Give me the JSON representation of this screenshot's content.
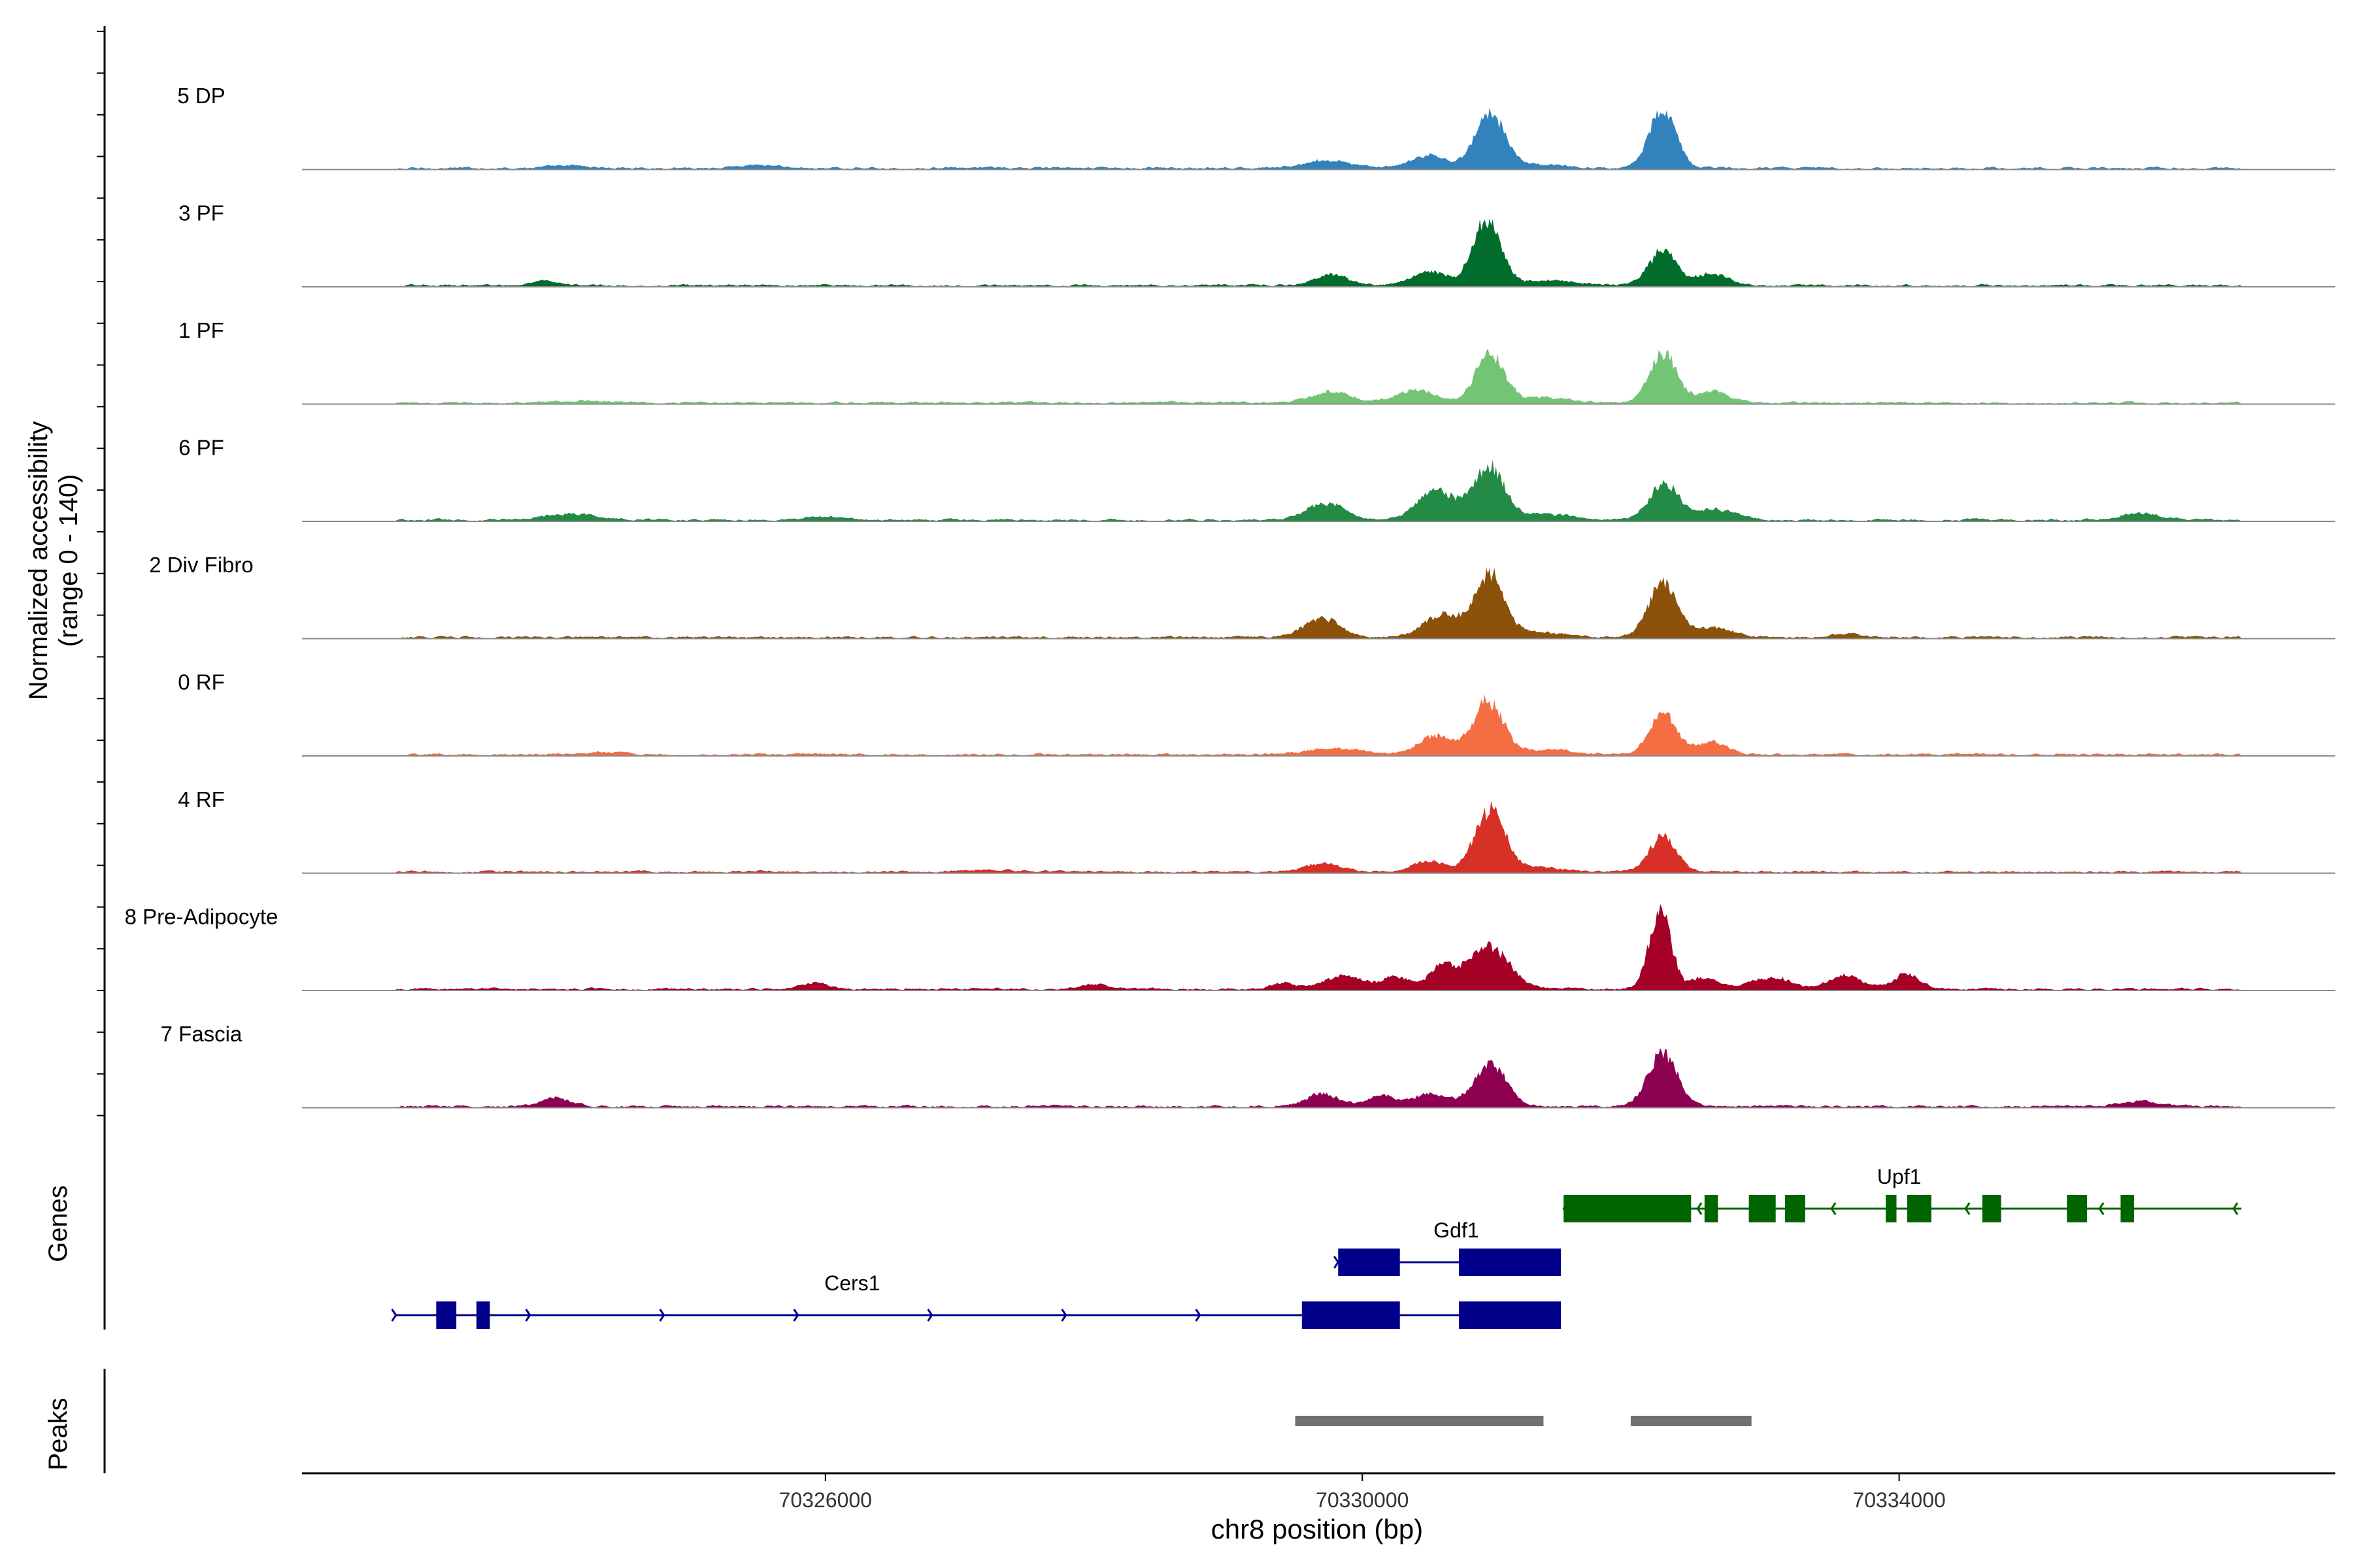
{
  "chart_data": {
    "type": "area",
    "title": "",
    "ylabel": [
      "Normalized accessibility",
      "(range 0 - 140)"
    ],
    "ylim": [
      0,
      140
    ],
    "xlabel": "chr8 position (bp)",
    "xlim": [
      70322100,
      70337250
    ],
    "xticks": [
      {
        "value": 70326000,
        "label": "70326000"
      },
      {
        "value": 70330000,
        "label": "70330000"
      },
      {
        "value": 70334000,
        "label": "70334000"
      }
    ],
    "coverage_start": 70322800,
    "coverage_end": 70336550,
    "background_noise": 4,
    "tracks": [
      {
        "name": "5 DP",
        "color": "#3182BD",
        "peaks": [
          [
            70330500,
            20,
            130
          ],
          [
            70330950,
            88,
            110
          ],
          [
            70332240,
            95,
            100
          ],
          [
            70329750,
            12,
            180
          ],
          [
            70331300,
            6,
            200
          ],
          [
            70324100,
            4,
            150
          ],
          [
            70325500,
            5,
            150
          ]
        ]
      },
      {
        "name": "3 PF",
        "color": "#006D2C",
        "peaks": [
          [
            70330500,
            22,
            130
          ],
          [
            70330930,
            106,
            105
          ],
          [
            70332240,
            58,
            100
          ],
          [
            70329770,
            18,
            120
          ],
          [
            70332600,
            18,
            120
          ],
          [
            70331400,
            8,
            200
          ],
          [
            70323900,
            8,
            100
          ]
        ]
      },
      {
        "name": "1 PF",
        "color": "#74C476",
        "peaks": [
          [
            70330400,
            22,
            140
          ],
          [
            70330950,
            78,
            105
          ],
          [
            70332240,
            82,
            100
          ],
          [
            70329770,
            18,
            150
          ],
          [
            70332620,
            18,
            120
          ],
          [
            70331300,
            8,
            200
          ],
          [
            70324200,
            4,
            200
          ]
        ]
      },
      {
        "name": "6 PF",
        "color": "#238B45",
        "peaks": [
          [
            70330550,
            48,
            140
          ],
          [
            70330940,
            84,
            110
          ],
          [
            70332250,
            58,
            110
          ],
          [
            70329730,
            26,
            150
          ],
          [
            70332650,
            16,
            150
          ],
          [
            70331300,
            10,
            250
          ],
          [
            70324100,
            10,
            200
          ],
          [
            70335800,
            10,
            150
          ],
          [
            70326000,
            5,
            150
          ]
        ]
      },
      {
        "name": "2 Div Fibro",
        "color": "#8C510A",
        "peaks": [
          [
            70330600,
            36,
            140
          ],
          [
            70330950,
            100,
            110
          ],
          [
            70332240,
            90,
            105
          ],
          [
            70329700,
            32,
            130
          ],
          [
            70332600,
            16,
            150
          ],
          [
            70331300,
            8,
            200
          ],
          [
            70333600,
            6,
            120
          ]
        ]
      },
      {
        "name": "0 RF",
        "color": "#F46D43",
        "peaks": [
          [
            70330550,
            30,
            130
          ],
          [
            70330940,
            86,
            110
          ],
          [
            70332240,
            66,
            100
          ],
          [
            70332600,
            20,
            120
          ],
          [
            70329800,
            10,
            200
          ],
          [
            70331400,
            8,
            200
          ],
          [
            70324300,
            4,
            150
          ]
        ]
      },
      {
        "name": "4 RF",
        "color": "#D73027",
        "peaks": [
          [
            70330500,
            16,
            130
          ],
          [
            70330950,
            100,
            110
          ],
          [
            70332240,
            58,
            100
          ],
          [
            70329700,
            14,
            120
          ],
          [
            70331300,
            6,
            200
          ],
          [
            70327200,
            4,
            150
          ]
        ]
      },
      {
        "name": "8 Pre-Adipocyte",
        "color": "#A50026",
        "peaks": [
          [
            70332220,
            130,
            80
          ],
          [
            70330950,
            66,
            150
          ],
          [
            70330600,
            38,
            100
          ],
          [
            70329850,
            22,
            150
          ],
          [
            70330250,
            20,
            100
          ],
          [
            70332550,
            20,
            100
          ],
          [
            70333050,
            18,
            150
          ],
          [
            70333600,
            22,
            120
          ],
          [
            70334050,
            24,
            100
          ],
          [
            70329400,
            10,
            80
          ],
          [
            70328000,
            10,
            100
          ],
          [
            70325900,
            10,
            100
          ]
        ]
      },
      {
        "name": "7 Fascia",
        "color": "#8E0152",
        "peaks": [
          [
            70330950,
            70,
            120
          ],
          [
            70332240,
            86,
            110
          ],
          [
            70330500,
            20,
            120
          ],
          [
            70329700,
            20,
            120
          ],
          [
            70330150,
            18,
            100
          ],
          [
            70324000,
            14,
            100
          ],
          [
            70335800,
            8,
            150
          ]
        ]
      }
    ],
    "genes": [
      {
        "name": "Upf1",
        "strand": "-",
        "color": "#006400",
        "row": 0,
        "start": 70331500,
        "end": 70336550,
        "exons": [
          [
            70331500,
            70332450
          ],
          [
            70332550,
            70332650
          ],
          [
            70332880,
            70333080
          ],
          [
            70333150,
            70333300
          ],
          [
            70333900,
            70333980
          ],
          [
            70334060,
            70334240
          ],
          [
            70334620,
            70334760
          ],
          [
            70335250,
            70335400
          ],
          [
            70335650,
            70335750
          ]
        ]
      },
      {
        "name": "Gdf1",
        "strand": "+",
        "color": "#00008B",
        "row": 1,
        "start": 70329820,
        "end": 70331480,
        "exons": [
          [
            70329820,
            70330280
          ],
          [
            70330720,
            70331480
          ]
        ]
      },
      {
        "name": "Cers1",
        "strand": "+",
        "color": "#00008B",
        "row": 2,
        "start": 70322800,
        "end": 70331480,
        "exons": [
          [
            70323100,
            70323250
          ],
          [
            70323400,
            70323500
          ],
          [
            70329550,
            70330280
          ],
          [
            70330720,
            70331480
          ]
        ]
      }
    ],
    "peaks_regions": [
      {
        "start": 70329500,
        "end": 70331350
      },
      {
        "start": 70332000,
        "end": 70332900
      }
    ]
  },
  "panels": {
    "genes_label": "Genes",
    "peaks_label": "Peaks"
  },
  "colors": {
    "baseline": "#8a8a8a",
    "axis": "#000000",
    "peak_bar": "#707070"
  }
}
